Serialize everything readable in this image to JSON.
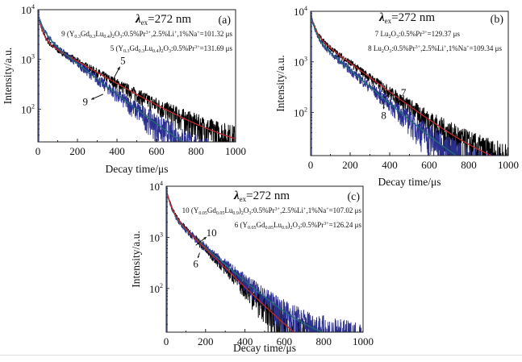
{
  "chart_data": [
    {
      "type": "line",
      "panel_label": "(a)",
      "excitation_label": "λex=272 nm",
      "excitation": {
        "symbol": "λ",
        "sub": "ex",
        "value": "=272 nm"
      },
      "xlabel": "Decay time/μs",
      "ylabel": "Intensity/a.u.",
      "xlim": [
        0,
        1000
      ],
      "ylim": [
        22,
        10000
      ],
      "yscale": "log",
      "x_ticks": [
        "0",
        "200",
        "400",
        "600",
        "800",
        "1000"
      ],
      "y_ticks": [
        {
          "base": "10",
          "exp": "2"
        },
        {
          "base": "10",
          "exp": "3"
        },
        {
          "base": "10",
          "exp": "4"
        }
      ],
      "legend": [
        {
          "id": "9",
          "text": "9 (Y0.3Gd0.3Lu0.4)2O3:0.5%Pr3+,2.5%Li+,1%Na+=101.32 μs",
          "parts": [
            [
              "9 (Y",
              ""
            ],
            [
              "0.3",
              "sub"
            ],
            [
              "Gd",
              ""
            ],
            [
              "0.3",
              "sub"
            ],
            [
              "Lu",
              ""
            ],
            [
              "0.4",
              "sub"
            ],
            [
              ")",
              ""
            ],
            [
              "2",
              "sub"
            ],
            [
              "O",
              ""
            ],
            [
              "3",
              "sub"
            ],
            [
              ":0.5%Pr",
              ""
            ],
            [
              "3+",
              "sup"
            ],
            [
              ",2.5%Li",
              ""
            ],
            [
              "+",
              "sup"
            ],
            [
              ",1%Na",
              ""
            ],
            [
              "+",
              "sup"
            ],
            [
              "=101.32 μs",
              ""
            ]
          ]
        },
        {
          "id": "5",
          "text": "5 (Y0.3Gd0.3Lu0.4)2O3:0.5%Pr3+=131.69 μs",
          "parts": [
            [
              "5 (Y",
              ""
            ],
            [
              "0.3",
              "sub"
            ],
            [
              "Gd",
              ""
            ],
            [
              "0.3",
              "sub"
            ],
            [
              "Lu",
              ""
            ],
            [
              "0.4",
              "sub"
            ],
            [
              ")",
              ""
            ],
            [
              "2",
              "sub"
            ],
            [
              "O",
              ""
            ],
            [
              "3",
              "sub"
            ],
            [
              ":0.5%Pr",
              ""
            ],
            [
              "3+",
              "sup"
            ],
            [
              "=131.69 μs",
              ""
            ]
          ]
        }
      ],
      "series": [
        {
          "name": "5",
          "lifetime_us": 131.69,
          "color": "#000000",
          "fit_color": "#c0282a",
          "fast_amp": 5200,
          "fast_tau": 18,
          "slow_amp": 2600,
          "slow_tau": 190,
          "floor": 12
        },
        {
          "name": "9",
          "lifetime_us": 101.32,
          "color": "#2b2f8f",
          "fit_color": "#1f6f6f",
          "fast_amp": 4400,
          "fast_tau": 25,
          "slow_amp": 3400,
          "slow_tau": 140,
          "floor": 4
        }
      ],
      "curve_labels": [
        {
          "text": "5",
          "x": 430,
          "y": 800,
          "arrow_to": [
            370,
            330
          ]
        },
        {
          "text": "9",
          "x": 240,
          "y": 120,
          "arrow_to": [
            330,
            200
          ]
        }
      ]
    },
    {
      "type": "line",
      "panel_label": "(b)",
      "excitation": {
        "symbol": "λ",
        "sub": "ex",
        "value": "=272 nm"
      },
      "xlabel": "Decay time/μs",
      "ylabel": "Intensity/a.u.",
      "xlim": [
        0,
        1000
      ],
      "ylim": [
        14,
        10000
      ],
      "yscale": "log",
      "x_ticks": [
        "0",
        "200",
        "400",
        "600",
        "800",
        "1000"
      ],
      "y_ticks": [
        {
          "base": "10",
          "exp": "2"
        },
        {
          "base": "10",
          "exp": "3"
        },
        {
          "base": "10",
          "exp": "4"
        }
      ],
      "legend": [
        {
          "id": "7",
          "text": "7 Lu2O3:0.5%Pr3+=129.37 μs",
          "parts": [
            [
              "7 Lu",
              ""
            ],
            [
              "2",
              "sub"
            ],
            [
              "O",
              ""
            ],
            [
              "3",
              "sub"
            ],
            [
              ":0.5%Pr",
              ""
            ],
            [
              "3+",
              "sup"
            ],
            [
              "=129.37 μs",
              ""
            ]
          ]
        },
        {
          "id": "8",
          "text": "8 Lu2O3:0.5%Pr3+,2.5%Li+,1%Na+=109.34 μs",
          "parts": [
            [
              "8 Lu",
              ""
            ],
            [
              "2",
              "sub"
            ],
            [
              "O",
              ""
            ],
            [
              "3",
              "sub"
            ],
            [
              ":0.5%Pr",
              ""
            ],
            [
              "3+",
              "sup"
            ],
            [
              ",2.5%Li",
              ""
            ],
            [
              "+",
              "sup"
            ],
            [
              ",1%Na",
              ""
            ],
            [
              "+",
              "sup"
            ],
            [
              "=109.34 μs",
              ""
            ]
          ]
        }
      ],
      "series": [
        {
          "name": "7",
          "lifetime_us": 129.37,
          "color": "#000000",
          "fit_color": "#c0282a",
          "fast_amp": 5000,
          "fast_tau": 20,
          "slow_amp": 3600,
          "slow_tau": 150,
          "floor": 6
        },
        {
          "name": "8",
          "lifetime_us": 109.34,
          "color": "#2b2f8f",
          "fit_color": "#1f6f6f",
          "fast_amp": 5200,
          "fast_tau": 20,
          "slow_amp": 3200,
          "slow_tau": 130,
          "floor": 3
        }
      ],
      "curve_labels": [
        {
          "text": "7",
          "x": 470,
          "y": 210,
          "arrow_to": [
            370,
            200
          ]
        },
        {
          "text": "8",
          "x": 370,
          "y": 75,
          "arrow_to": [
            370,
            160
          ]
        }
      ]
    },
    {
      "type": "line",
      "panel_label": "(c)",
      "excitation": {
        "symbol": "λ",
        "sub": "ex",
        "value": "=272 nm"
      },
      "xlabel": "Decay time/μs",
      "ylabel": "Intensity/a.u.",
      "xlim": [
        0,
        1000
      ],
      "ylim": [
        14,
        10000
      ],
      "yscale": "log",
      "x_ticks": [
        "0",
        "200",
        "400",
        "600",
        "800",
        "1000"
      ],
      "y_ticks": [
        {
          "base": "10",
          "exp": "2"
        },
        {
          "base": "10",
          "exp": "3"
        },
        {
          "base": "10",
          "exp": "4"
        }
      ],
      "legend": [
        {
          "id": "10",
          "text": "10 (Y0.05Gd0.05Lu0.9)2O3:0.5%Pr3+,2.5%Li+,1%Na+=107.02 μs",
          "parts": [
            [
              "10 (Y",
              ""
            ],
            [
              "0.05",
              "sub"
            ],
            [
              "Gd",
              ""
            ],
            [
              "0.05",
              "sub"
            ],
            [
              "Lu",
              ""
            ],
            [
              "0.9",
              "sub"
            ],
            [
              ")",
              ""
            ],
            [
              "2",
              "sub"
            ],
            [
              "O",
              ""
            ],
            [
              "3",
              "sub"
            ],
            [
              ":0.5%Pr",
              ""
            ],
            [
              "3+",
              "sup"
            ],
            [
              ",2.5%Li",
              ""
            ],
            [
              "+",
              "sup"
            ],
            [
              ",1%Na",
              ""
            ],
            [
              "+",
              "sup"
            ],
            [
              "=107.02 μs",
              ""
            ]
          ]
        },
        {
          "id": "6",
          "text": "6 (Y0.05Gd0.05Lu0.9)2O3:0.5%Pr3+=126.24 μs",
          "parts": [
            [
              "6 (Y",
              ""
            ],
            [
              "0.05",
              "sub"
            ],
            [
              "Gd",
              ""
            ],
            [
              "0.05",
              "sub"
            ],
            [
              "Lu",
              ""
            ],
            [
              "0.9",
              "sub"
            ],
            [
              ")",
              ""
            ],
            [
              "2",
              "sub"
            ],
            [
              "O",
              ""
            ],
            [
              "3",
              "sub"
            ],
            [
              ":0.5%Pr",
              ""
            ],
            [
              "3+",
              "sup"
            ],
            [
              "=126.24 μs",
              ""
            ]
          ]
        }
      ],
      "series": [
        {
          "name": "6",
          "lifetime_us": 126.24,
          "color": "#2b2f8f",
          "fit_color": "#1f6f6f",
          "fast_amp": 5500,
          "fast_tau": 20,
          "slow_amp": 3000,
          "slow_tau": 128,
          "floor": 8
        },
        {
          "name": "10",
          "lifetime_us": 107.02,
          "color": "#000000",
          "fit_color": "#c0282a",
          "fast_amp": 5000,
          "fast_tau": 20,
          "slow_amp": 3400,
          "slow_tau": 115,
          "floor": 2
        }
      ],
      "curve_labels": [
        {
          "text": "10",
          "x": 230,
          "y": 1050,
          "arrow_to": [
            150,
            700
          ]
        },
        {
          "text": "6",
          "x": 150,
          "y": 260,
          "arrow_to": [
            170,
            500
          ]
        }
      ]
    }
  ]
}
